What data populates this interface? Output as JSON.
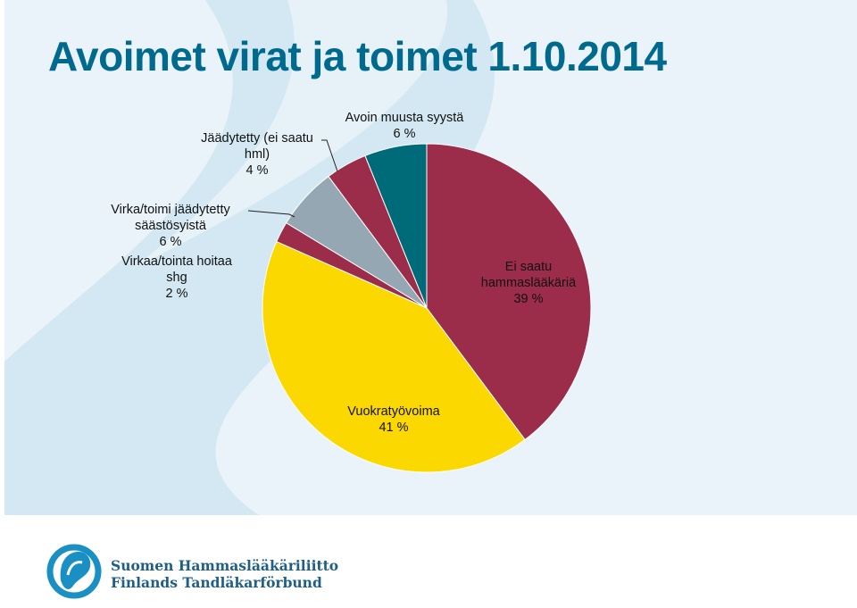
{
  "title": "Avoimet virat ja toimet 1.10.2014",
  "chart_data": {
    "type": "pie",
    "start_angle_deg": 0,
    "direction": "clockwise",
    "slices": [
      {
        "label_lines": [
          "Ei saatu",
          "hammaslääkäriä",
          "39 %"
        ],
        "value": 39,
        "color": "#9b2d4a"
      },
      {
        "label_lines": [
          "Vuokratyövoima",
          "41 %"
        ],
        "value": 41,
        "color": "#fbd800"
      },
      {
        "label_lines": [
          "Virkaa/tointa hoitaa",
          "shg",
          "2 %"
        ],
        "value": 2,
        "color": "#9b2d4a"
      },
      {
        "label_lines": [
          "Virka/toimi jäädytetty",
          "säästösyistä",
          "6 %"
        ],
        "value": 6,
        "color": "#94a7b2"
      },
      {
        "label_lines": [
          "Jäädytetty (ei saatu",
          "hml)",
          "4 %"
        ],
        "value": 4,
        "color": "#9b2d4a"
      },
      {
        "label_lines": [
          "Avoin muusta syystä",
          "6 %"
        ],
        "value": 6,
        "color": "#006b78"
      }
    ]
  },
  "footer": {
    "org_name_fi": "Suomen Hammaslääkäriliitto",
    "org_name_sv": "Finlands Tandläkarförbund",
    "logo_icon": "tooth-logo-icon",
    "logo_color": "#1a8fc4"
  }
}
